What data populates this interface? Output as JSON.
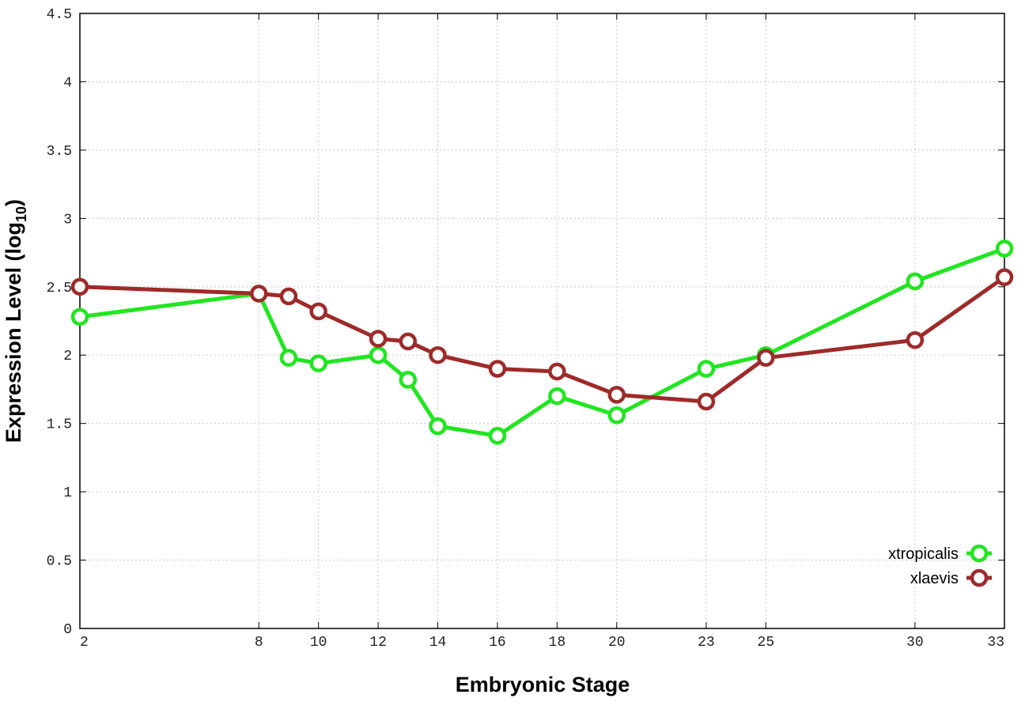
{
  "chart_data": {
    "type": "line",
    "title": "",
    "xlabel": "Embryonic Stage",
    "ylabel": {
      "base": "Expression Level (log",
      "subscript": "10",
      "suffix": ")"
    },
    "xlim": [
      2,
      33
    ],
    "ylim": [
      0,
      4.5
    ],
    "xticks": [
      2,
      8,
      10,
      12,
      14,
      16,
      18,
      20,
      23,
      25,
      30,
      33
    ],
    "yticks": [
      0,
      0.5,
      1,
      1.5,
      2,
      2.5,
      3,
      3.5,
      4,
      4.5
    ],
    "ytick_labels": [
      "0",
      "0.5",
      "1",
      "1.5",
      "2",
      "2.5",
      "3",
      "3.5",
      "4",
      "4.5"
    ],
    "grid": true,
    "legend_position": "bottom-right",
    "series": [
      {
        "name": "xtropicalis",
        "color": "#1fe61f",
        "marker": "open-circle",
        "x": [
          2,
          8,
          9,
          10,
          12,
          13,
          14,
          16,
          18,
          20,
          23,
          25,
          30,
          33
        ],
        "y": [
          2.28,
          2.45,
          1.98,
          1.94,
          2.0,
          1.82,
          1.48,
          1.41,
          1.7,
          1.56,
          1.9,
          2.0,
          2.54,
          2.78
        ]
      },
      {
        "name": "xlaevis",
        "color": "#9e2a2a",
        "marker": "open-circle",
        "x": [
          2,
          8,
          9,
          10,
          12,
          13,
          14,
          16,
          18,
          20,
          23,
          25,
          30,
          33
        ],
        "y": [
          2.5,
          2.45,
          2.43,
          2.32,
          2.12,
          2.1,
          2.0,
          1.9,
          1.88,
          1.71,
          1.66,
          1.98,
          2.11,
          2.57
        ]
      }
    ]
  }
}
